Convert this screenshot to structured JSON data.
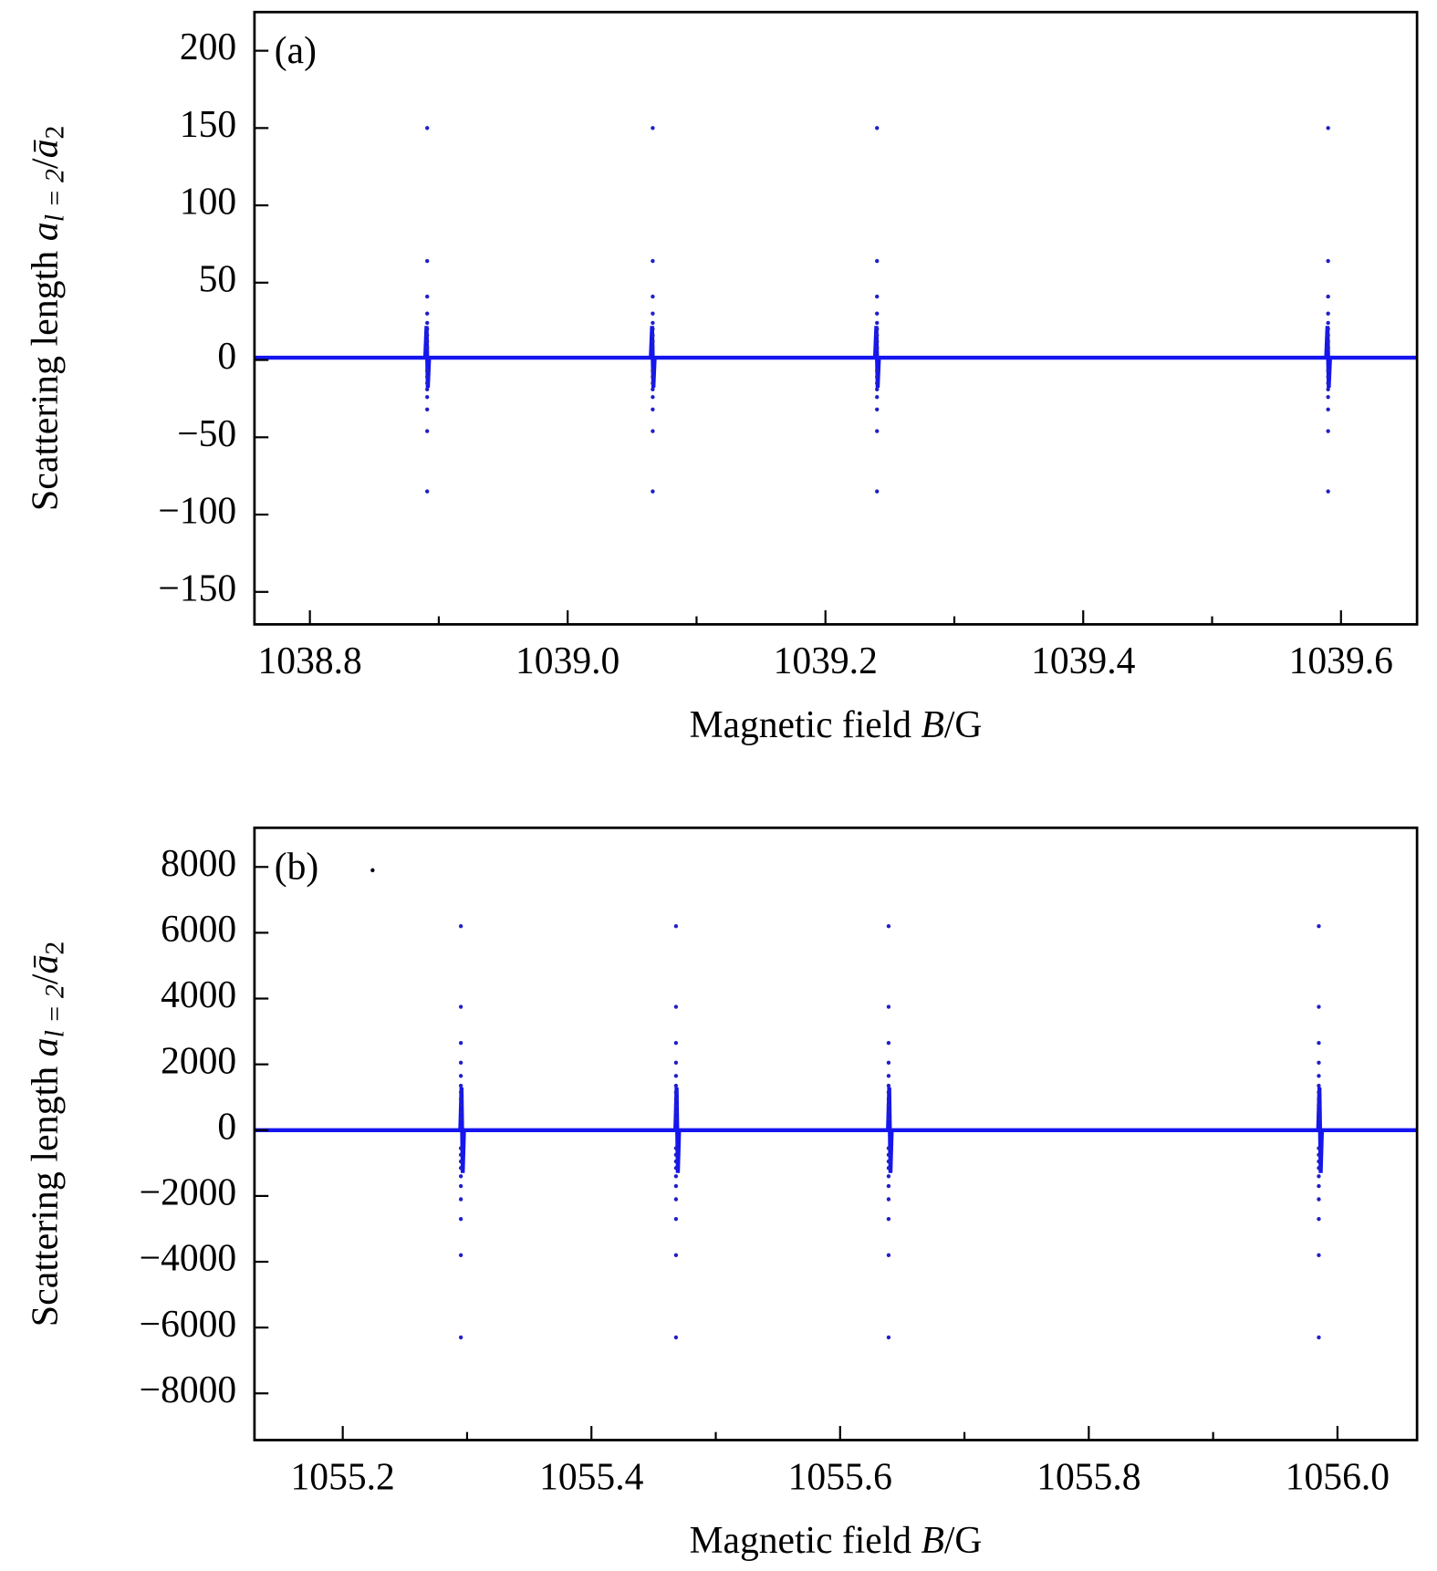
{
  "chart_data": [
    {
      "type": "scatter",
      "annotation": "(a)",
      "xlabel": {
        "text": "Magnetic field ",
        "var": "B",
        "tail": "/G"
      },
      "ylabel": {
        "text": "Scattering length ",
        "var": "a",
        "sub": "l = 2",
        "slash": "/",
        "var2": "ā",
        "sub2": "2"
      },
      "xlim": [
        1038.757,
        1039.659
      ],
      "ylim": [
        -171,
        225
      ],
      "xticks": [
        {
          "value": 1038.8,
          "label": "1038.8"
        },
        {
          "value": 1039.0,
          "label": "1039.0"
        },
        {
          "value": 1039.2,
          "label": "1039.2"
        },
        {
          "value": 1039.4,
          "label": "1039.4"
        },
        {
          "value": 1039.6,
          "label": "1039.6"
        }
      ],
      "xminorticks": [
        1038.9,
        1039.1,
        1039.3,
        1039.5
      ],
      "yticks": [
        200,
        150,
        100,
        50,
        0,
        {
          "value": -50,
          "label": "−50"
        },
        {
          "value": -100,
          "label": "−100"
        },
        {
          "value": -150,
          "label": "−150"
        }
      ],
      "series": [
        {
          "color": "#1515f0",
          "style": "line",
          "x": [
            1038.757,
            1038.8895,
            1038.8905,
            1038.8915,
            1038.8925,
            1039.0645,
            1039.0655,
            1039.0665,
            1039.0675,
            1039.2385,
            1039.2395,
            1039.2405,
            1039.2415,
            1039.5885,
            1039.5895,
            1039.5905,
            1039.5915,
            1039.659
          ],
          "values": [
            1.5,
            1.5,
            22,
            -18,
            1.5,
            1.5,
            22,
            -18,
            1.5,
            1.5,
            22,
            -18,
            1.5,
            1.5,
            22,
            -18,
            1.5,
            1.5
          ]
        },
        {
          "color": "#2020c8",
          "style": "dots",
          "x": [
            1038.891,
            1038.891,
            1038.891,
            1038.891,
            1038.891,
            1038.891,
            1038.891,
            1038.891,
            1038.891,
            1038.891,
            1038.891,
            1038.891,
            1038.891,
            1038.891,
            1038.891,
            1038.891,
            1038.891,
            1039.066,
            1039.066,
            1039.066,
            1039.066,
            1039.066,
            1039.066,
            1039.066,
            1039.066,
            1039.066,
            1039.066,
            1039.066,
            1039.066,
            1039.066,
            1039.066,
            1039.066,
            1039.066,
            1039.066,
            1039.24,
            1039.24,
            1039.24,
            1039.24,
            1039.24,
            1039.24,
            1039.24,
            1039.24,
            1039.24,
            1039.24,
            1039.24,
            1039.24,
            1039.24,
            1039.24,
            1039.24,
            1039.24,
            1039.24,
            1039.59,
            1039.59,
            1039.59,
            1039.59,
            1039.59,
            1039.59,
            1039.59,
            1039.59,
            1039.59,
            1039.59,
            1039.59,
            1039.59,
            1039.59,
            1039.59,
            1039.59,
            1039.59,
            1039.59
          ],
          "values": [
            150,
            64,
            41,
            30,
            24,
            20,
            16,
            12,
            8,
            -85,
            -46,
            -32,
            -24,
            -19,
            -15,
            -11,
            -7,
            150,
            64,
            41,
            30,
            24,
            20,
            16,
            12,
            8,
            -85,
            -46,
            -32,
            -24,
            -19,
            -15,
            -11,
            -7,
            150,
            64,
            41,
            30,
            24,
            20,
            16,
            12,
            8,
            -85,
            -46,
            -32,
            -24,
            -19,
            -15,
            -11,
            -7,
            150,
            64,
            41,
            30,
            24,
            20,
            16,
            12,
            8,
            -85,
            -46,
            -32,
            -24,
            -19,
            -15,
            -11,
            -7
          ]
        }
      ]
    },
    {
      "type": "scatter",
      "annotation": "(b)",
      "xlabel": {
        "text": "Magnetic field ",
        "var": "B",
        "tail": "/G"
      },
      "ylabel": {
        "text": "Scattering length ",
        "var": "a",
        "sub": "l = 2",
        "slash": "/",
        "var2": "ā",
        "sub2": "2"
      },
      "xlim": [
        1055.129,
        1056.064
      ],
      "ylim": [
        -9420,
        9190
      ],
      "xticks": [
        {
          "value": 1055.2,
          "label": "1055.2"
        },
        {
          "value": 1055.4,
          "label": "1055.4"
        },
        {
          "value": 1055.6,
          "label": "1055.6"
        },
        {
          "value": 1055.8,
          "label": "1055.8"
        },
        {
          "value": 1056.0,
          "label": "1056.0"
        }
      ],
      "xminorticks": [
        1055.3,
        1055.5,
        1055.7,
        1055.9
      ],
      "yticks": [
        8000,
        6000,
        4000,
        2000,
        0,
        {
          "value": -2000,
          "label": "−2000"
        },
        {
          "value": -4000,
          "label": "−4000"
        },
        {
          "value": -6000,
          "label": "−6000"
        },
        {
          "value": -8000,
          "label": "−8000"
        }
      ],
      "series": [
        {
          "color": "#1515f0",
          "style": "line",
          "x": [
            1055.129,
            1055.2945,
            1055.2955,
            1055.2965,
            1055.2975,
            1055.4675,
            1055.4685,
            1055.4695,
            1055.4705,
            1055.6385,
            1055.6395,
            1055.6405,
            1055.6415,
            1055.9845,
            1055.9855,
            1055.9865,
            1055.9875,
            1056.064
          ],
          "values": [
            0,
            0,
            1300,
            -1300,
            0,
            0,
            1300,
            -1300,
            0,
            0,
            1300,
            -1300,
            0,
            0,
            1300,
            -1300,
            0,
            0
          ]
        },
        {
          "color": "#2020c8",
          "style": "dots",
          "x": [
            1055.295,
            1055.295,
            1055.295,
            1055.295,
            1055.295,
            1055.295,
            1055.295,
            1055.295,
            1055.295,
            1055.295,
            1055.295,
            1055.295,
            1055.295,
            1055.295,
            1055.295,
            1055.295,
            1055.295,
            1055.295,
            1055.295,
            1055.295,
            1055.295,
            1055.468,
            1055.468,
            1055.468,
            1055.468,
            1055.468,
            1055.468,
            1055.468,
            1055.468,
            1055.468,
            1055.468,
            1055.468,
            1055.468,
            1055.468,
            1055.468,
            1055.468,
            1055.468,
            1055.468,
            1055.468,
            1055.468,
            1055.468,
            1055.468,
            1055.639,
            1055.639,
            1055.639,
            1055.639,
            1055.639,
            1055.639,
            1055.639,
            1055.639,
            1055.639,
            1055.639,
            1055.639,
            1055.639,
            1055.639,
            1055.639,
            1055.639,
            1055.639,
            1055.639,
            1055.639,
            1055.639,
            1055.639,
            1055.639,
            1055.985,
            1055.985,
            1055.985,
            1055.985,
            1055.985,
            1055.985,
            1055.985,
            1055.985,
            1055.985,
            1055.985,
            1055.985,
            1055.985,
            1055.985,
            1055.985,
            1055.985,
            1055.985,
            1055.985,
            1055.985,
            1055.985,
            1055.985,
            1055.985
          ],
          "values": [
            6200,
            3750,
            2650,
            2050,
            1650,
            1350,
            1150,
            950,
            750,
            550,
            350,
            -6300,
            -3800,
            -2700,
            -2100,
            -1700,
            -1400,
            -1150,
            -950,
            -750,
            -550,
            6200,
            3750,
            2650,
            2050,
            1650,
            1350,
            1150,
            950,
            750,
            550,
            350,
            -6300,
            -3800,
            -2700,
            -2100,
            -1700,
            -1400,
            -1150,
            -950,
            -750,
            -550,
            6200,
            3750,
            2650,
            2050,
            1650,
            1350,
            1150,
            950,
            750,
            550,
            350,
            -6300,
            -3800,
            -2700,
            -2100,
            -1700,
            -1400,
            -1150,
            -950,
            -750,
            -550,
            6200,
            3750,
            2650,
            2050,
            1650,
            1350,
            1150,
            950,
            750,
            550,
            350,
            -6300,
            -3800,
            -2700,
            -2100,
            -1700,
            -1400,
            -1150,
            -950,
            -750,
            -550
          ]
        },
        {
          "color": "#000022",
          "style": "dots",
          "x": [
            1055.224
          ],
          "values": [
            7900
          ]
        }
      ]
    }
  ]
}
